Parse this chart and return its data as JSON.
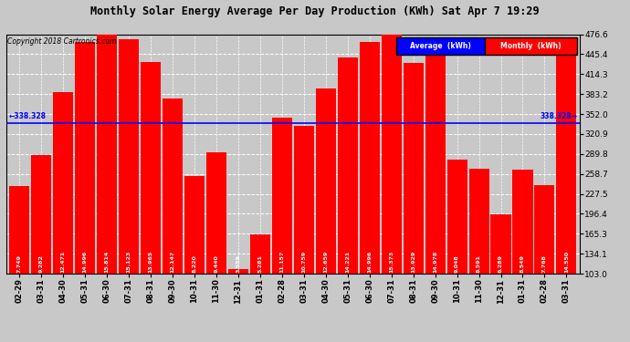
{
  "title": "Monthly Solar Energy Average Per Day Production (KWh) Sat Apr 7 19:29",
  "copyright": "Copyright 2018 Cartronics.com",
  "categories": [
    "02-29",
    "03-31",
    "04-30",
    "05-31",
    "06-30",
    "07-31",
    "08-31",
    "09-30",
    "10-31",
    "11-30",
    "12-31",
    "01-31",
    "02-28",
    "03-31",
    "04-30",
    "05-31",
    "06-30",
    "07-31",
    "08-31",
    "09-30",
    "10-31",
    "11-30",
    "12-31",
    "01-31",
    "02-28",
    "03-31"
  ],
  "values": [
    7.749,
    9.282,
    12.471,
    14.996,
    15.814,
    15.123,
    13.965,
    12.147,
    8.22,
    9.44,
    3.559,
    5.281,
    11.157,
    10.759,
    12.659,
    14.221,
    14.996,
    15.373,
    13.929,
    14.978,
    9.048,
    8.591,
    6.289,
    8.549,
    7.768,
    14.55
  ],
  "average": 338.328,
  "ylim_min": 103.0,
  "ylim_max": 476.6,
  "bar_color": "#FF0000",
  "avg_line_color": "#0000FF",
  "bg_color": "#C8C8C8",
  "plot_bg_color": "#C8C8C8",
  "bar_label_color": "#FFFFFF",
  "avg_label_color": "#0000FF",
  "yticks": [
    103.0,
    134.1,
    165.3,
    196.4,
    227.5,
    258.7,
    289.8,
    320.9,
    352.0,
    383.2,
    414.3,
    445.4,
    476.6
  ],
  "grid_color": "#FFFFFF",
  "legend_avg_color": "#0000FF",
  "legend_monthly_color": "#FF0000",
  "scale_factor": 31.0
}
